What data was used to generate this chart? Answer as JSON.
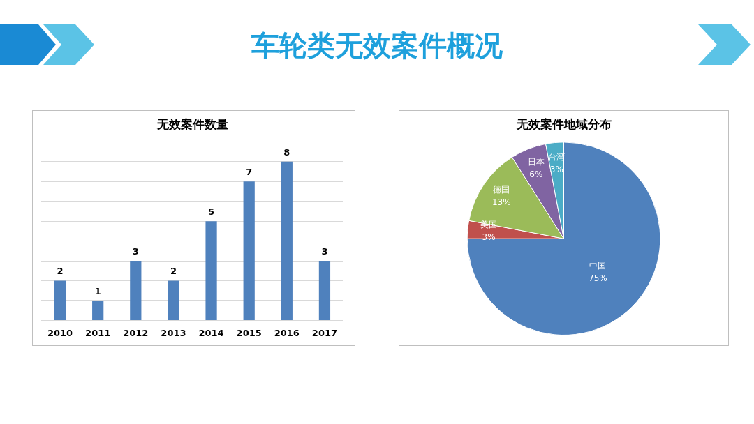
{
  "chart_data": [
    {
      "type": "bar",
      "title": "无效案件数量",
      "annotations": [
        "车轮类无效案件概况"
      ],
      "categories": [
        "2010",
        "2011",
        "2012",
        "2013",
        "2014",
        "2015",
        "2016",
        "2017"
      ],
      "values": [
        2,
        1,
        3,
        2,
        5,
        7,
        8,
        3
      ],
      "color": "#4f81bd",
      "ylim": [
        0,
        9
      ],
      "yticks": [
        {
          "value": 0,
          "label": null
        },
        {
          "value": 1,
          "label": null
        },
        {
          "value": 2,
          "label": null
        },
        {
          "value": 3,
          "label": null
        },
        {
          "value": 4,
          "label": null
        },
        {
          "value": 5,
          "label": null
        },
        {
          "value": 6,
          "label": null
        },
        {
          "value": 7,
          "label": null
        },
        {
          "value": 8,
          "label": null
        },
        {
          "value": 9,
          "label": null
        }
      ],
      "tick_labels": "x",
      "grid": "y",
      "data_labels": true,
      "legend": false
    },
    {
      "type": "pie",
      "title": "无效案件地域分布",
      "categories": [
        "中国",
        "美国",
        "德国",
        "日本",
        "台湾"
      ],
      "values": [
        75,
        3,
        13,
        6,
        3
      ],
      "value_labels": [
        "75%",
        "3%",
        "13%",
        "6%",
        "3%"
      ],
      "colors": [
        "#4f81bd",
        "#c0504d",
        "#9bbb59",
        "#8064a2",
        "#4bacc6"
      ],
      "legend": false
    }
  ]
}
